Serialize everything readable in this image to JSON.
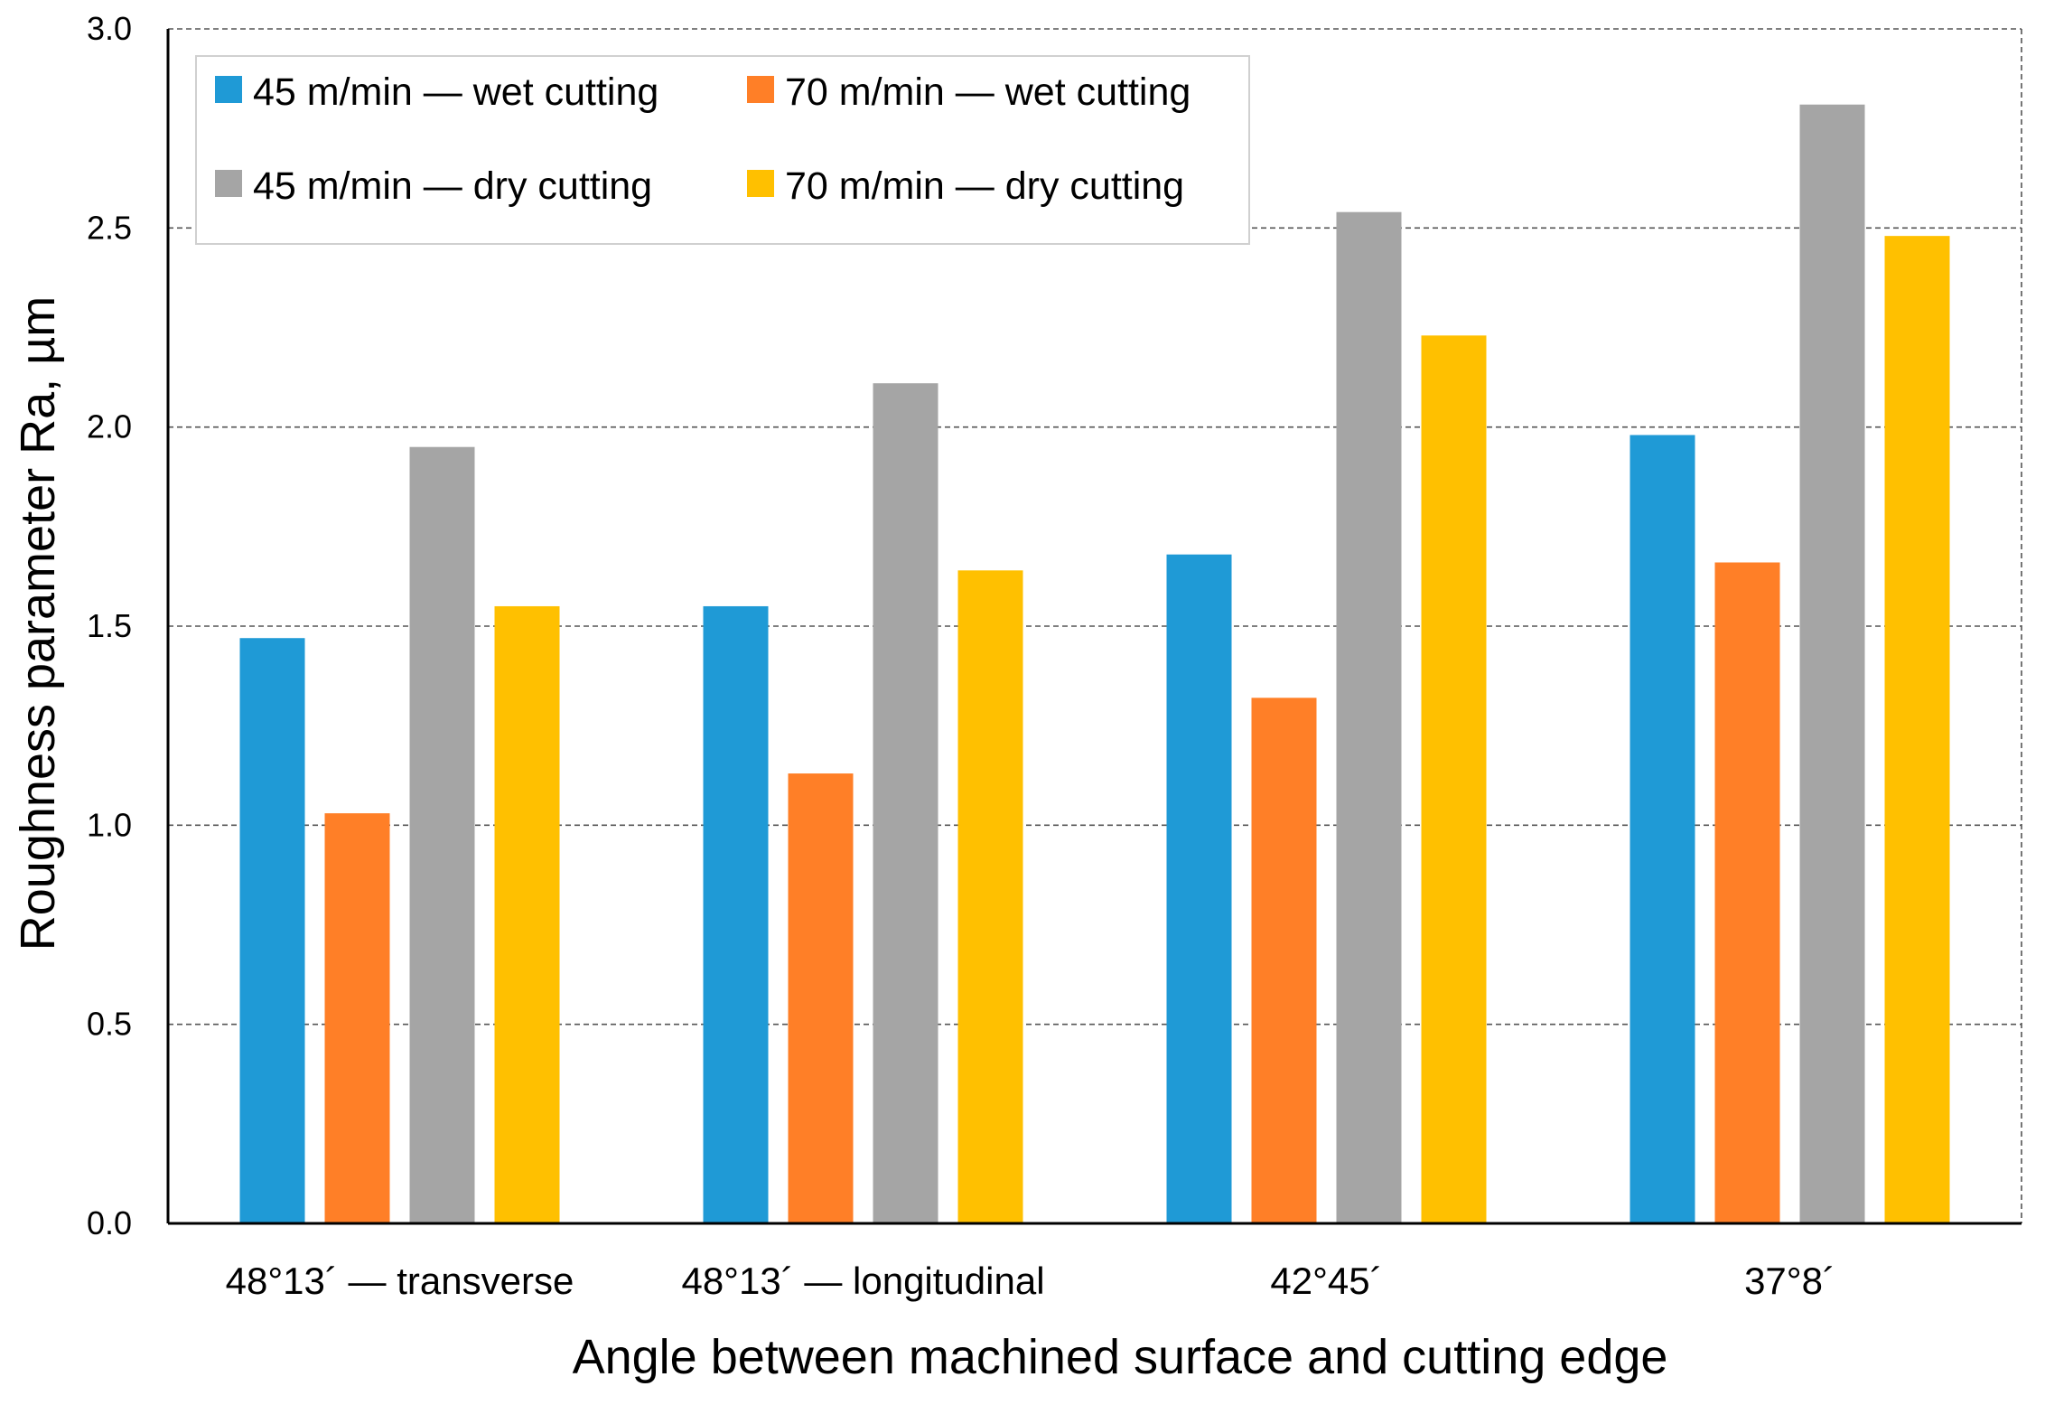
{
  "chart_data": {
    "type": "bar",
    "title": "",
    "xlabel": "Angle between machined surface and cutting edge",
    "ylabel": "Roughness parameter Ra, µm",
    "ylim": [
      0,
      3
    ],
    "yticks": [
      "0.0",
      "0.5",
      "1.0",
      "1.5",
      "2.0",
      "2.5",
      "3.0"
    ],
    "grid": "horizontal dashed",
    "legend_position": "top-left",
    "categories": [
      "48°13´ — transverse",
      "48°13´ — longitudinal",
      "42°45´",
      "37°8´"
    ],
    "series": [
      {
        "name": "45 m/min — wet cutting",
        "color": "#1F9AD6",
        "values": [
          1.47,
          1.55,
          1.68,
          1.98
        ]
      },
      {
        "name": "70 m/min — wet cutting",
        "color": "#FF7F27",
        "values": [
          1.03,
          1.13,
          1.32,
          1.66
        ]
      },
      {
        "name": "45 m/min — dry cutting",
        "color": "#A5A5A5",
        "values": [
          1.95,
          2.11,
          2.54,
          2.81
        ]
      },
      {
        "name": "70 m/min — dry cutting",
        "color": "#FFC000",
        "values": [
          1.55,
          1.64,
          2.23,
          2.48
        ]
      }
    ]
  }
}
